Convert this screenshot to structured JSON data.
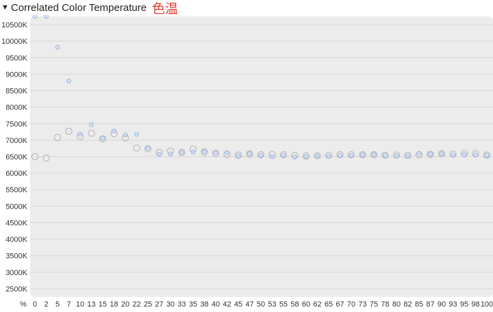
{
  "header": {
    "collapse_icon": "triangle-down-icon",
    "title": "Correlated Color Temperature",
    "title_cjk": "色温"
  },
  "chart_data": {
    "type": "scatter",
    "title": "Correlated Color Temperature",
    "x_unit_label": "%",
    "x_ticks": [
      "0",
      "2",
      "5",
      "7",
      "10",
      "13",
      "15",
      "18",
      "20",
      "22",
      "25",
      "27",
      "30",
      "33",
      "35",
      "38",
      "40",
      "42",
      "45",
      "47",
      "50",
      "53",
      "55",
      "58",
      "60",
      "62",
      "65",
      "67",
      "70",
      "73",
      "75",
      "78",
      "80",
      "82",
      "85",
      "87",
      "90",
      "93",
      "95",
      "98",
      "100"
    ],
    "y_ticks": [
      "10500K",
      "10000K",
      "9500K",
      "9000K",
      "8500K",
      "8000K",
      "7500K",
      "7000K",
      "6500K",
      "6000K",
      "5500K",
      "5000K",
      "4500K",
      "4000K",
      "3500K",
      "3000K",
      "2500K"
    ],
    "y_tick_values": [
      10500,
      10000,
      9500,
      9000,
      8500,
      8000,
      7500,
      7000,
      6500,
      6000,
      5500,
      5000,
      4500,
      4000,
      3500,
      3000,
      2500
    ],
    "ylim": [
      2250,
      10750
    ],
    "grid": true,
    "colors": {
      "panel": "#ececec",
      "grid": "#d6d6d6",
      "series_a": "#a8a8a8",
      "series_b": "#8fb1e6"
    },
    "series": [
      {
        "values": [
          6500,
          6460,
          7080,
          7270,
          7110,
          7210,
          7040,
          7200,
          7070,
          6760,
          6740,
          6630,
          6670,
          6630,
          6730,
          6640,
          6600,
          6570,
          6550,
          6580,
          6560,
          6570,
          6560,
          6540,
          6520,
          6530,
          6540,
          6560,
          6560,
          6560,
          6560,
          6540,
          6550,
          6540,
          6560,
          6570,
          6590,
          6580,
          6600,
          6590,
          6550
        ]
      },
      {
        "values": [
          10750,
          10750,
          9820,
          8790,
          7180,
          7470,
          7060,
          7280,
          7160,
          7180,
          6760,
          6570,
          6580,
          6630,
          6640,
          6650,
          6620,
          6620,
          6520,
          6590,
          6540,
          6500,
          6540,
          6490,
          6500,
          6520,
          6510,
          6530,
          6530,
          6560,
          6570,
          6540,
          6520,
          6520,
          6600,
          6580,
          6590,
          6550,
          6560,
          6550,
          6540
        ]
      }
    ]
  }
}
